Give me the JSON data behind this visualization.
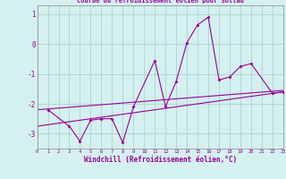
{
  "title": "Courbe du refroidissement éolien pour Soltau",
  "xlabel": "Windchill (Refroidissement éolien,°C)",
  "bg_color": "#d4f0f0",
  "line_color": "#990099",
  "grid_color": "#aacccc",
  "xlim": [
    0,
    23
  ],
  "ylim": [
    -3.5,
    1.3
  ],
  "yticks": [
    -3,
    -2,
    -1,
    0,
    1
  ],
  "xticks": [
    0,
    1,
    2,
    3,
    4,
    5,
    6,
    7,
    8,
    9,
    10,
    11,
    12,
    13,
    14,
    15,
    16,
    17,
    18,
    19,
    20,
    21,
    22,
    23
  ],
  "upper_line": {
    "x": [
      0,
      23
    ],
    "y": [
      -2.2,
      -1.55
    ]
  },
  "lower_line": {
    "x": [
      0,
      23
    ],
    "y": [
      -2.75,
      -1.6
    ]
  },
  "data_x": [
    1,
    3,
    4,
    5,
    6,
    7,
    8,
    9,
    11,
    12,
    13,
    14,
    15,
    16,
    17,
    18,
    19,
    20,
    22,
    23
  ],
  "data_y": [
    -2.2,
    -2.75,
    -3.25,
    -2.55,
    -2.5,
    -2.5,
    -3.3,
    -2.1,
    -0.55,
    -2.1,
    -1.25,
    0.05,
    0.65,
    0.9,
    -1.2,
    -1.1,
    -0.75,
    -0.65,
    -1.65,
    -1.6
  ]
}
